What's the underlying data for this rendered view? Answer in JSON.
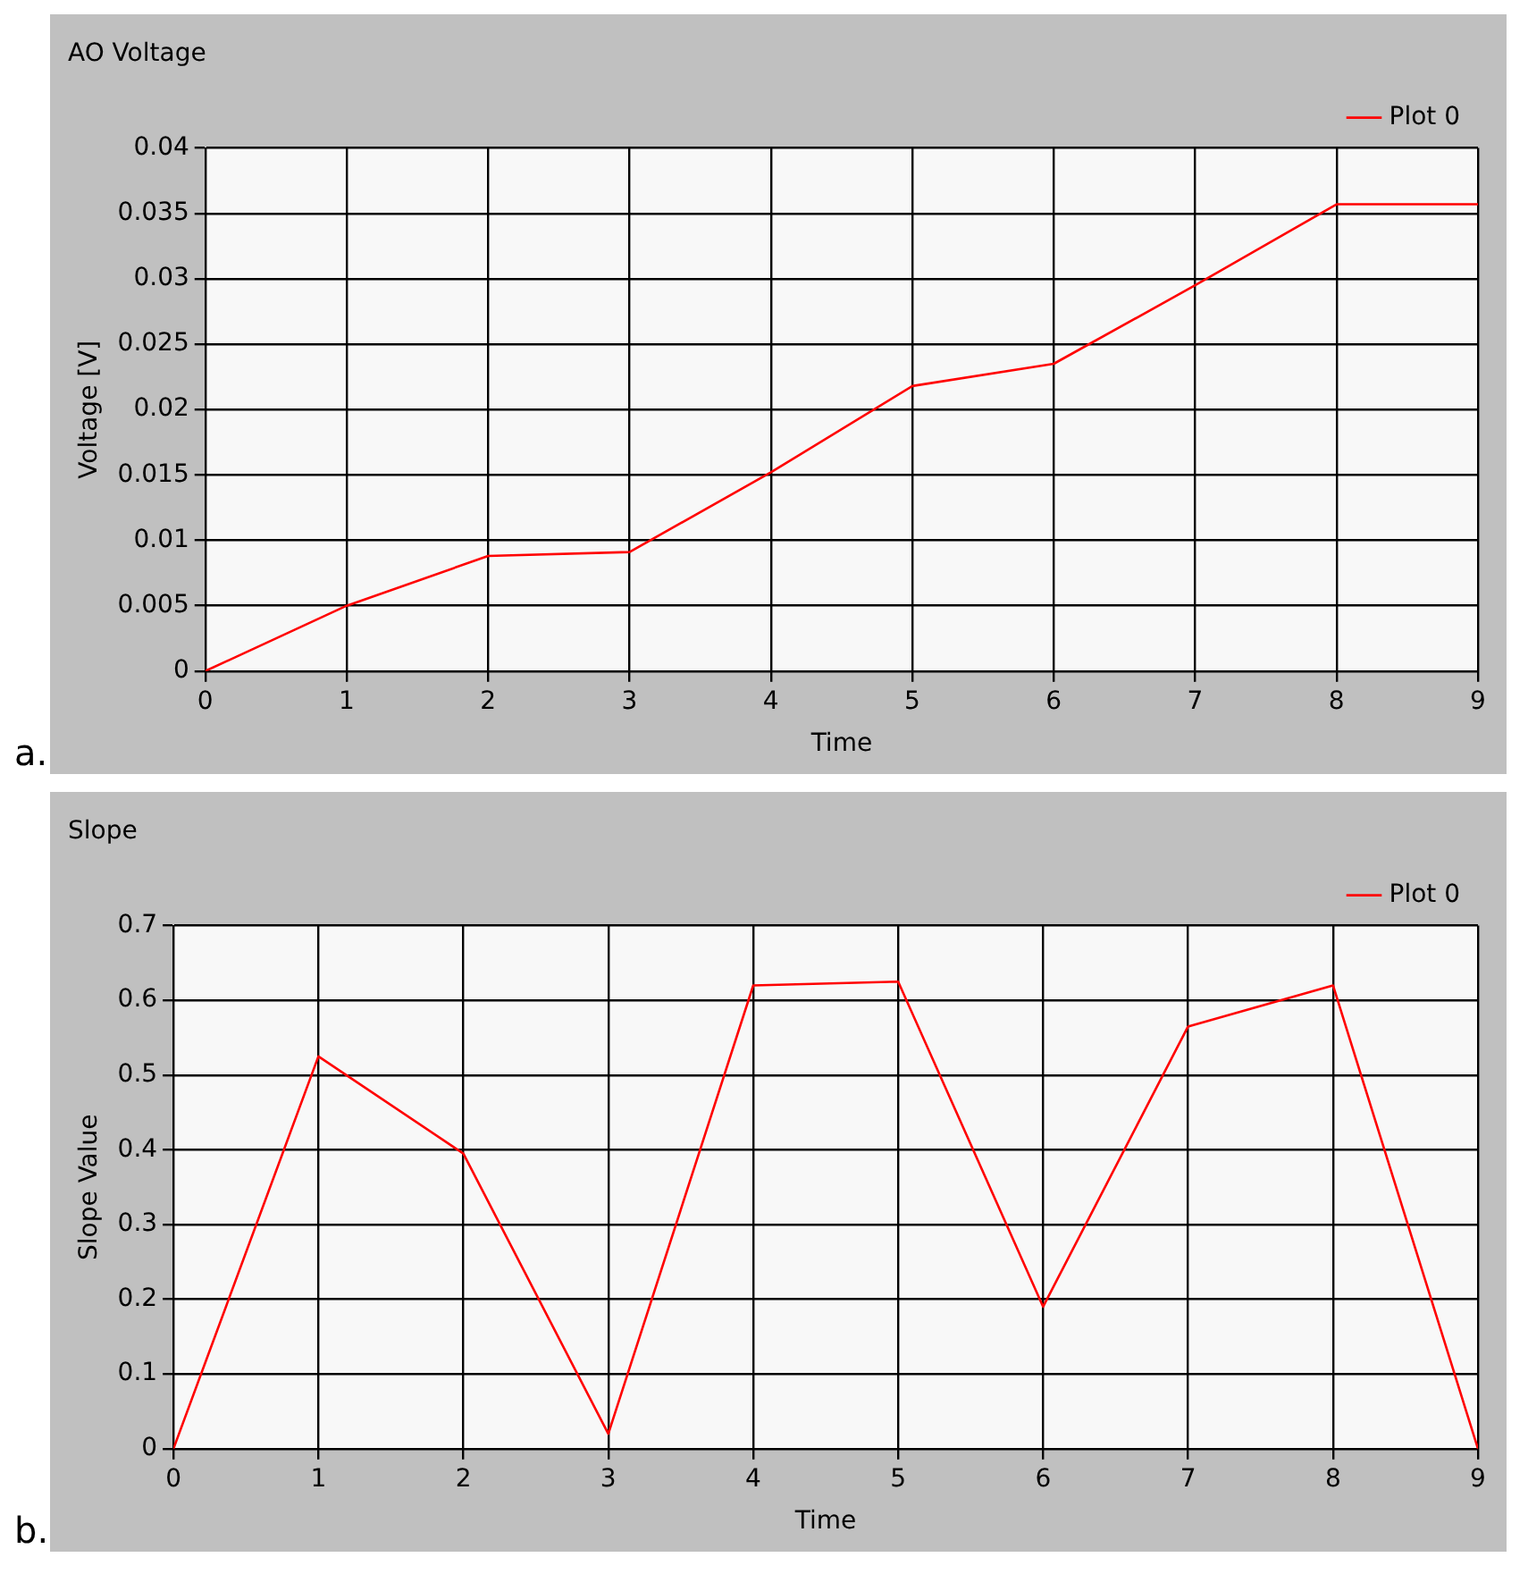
{
  "chart_data": [
    {
      "type": "line",
      "title": "AO Voltage",
      "xlabel": "Time",
      "ylabel": "Voltage [V]",
      "annotations": [
        "a."
      ],
      "x": [
        0,
        1,
        2,
        3,
        4,
        5,
        6,
        7,
        8,
        9
      ],
      "series": [
        {
          "name": "Plot 0",
          "color": "#ff0000",
          "values": [
            0,
            0.005,
            0.0088,
            0.0091,
            0.0152,
            0.0218,
            0.0235,
            0.0295,
            0.0357,
            0.0357
          ]
        }
      ],
      "xlim": [
        0,
        9
      ],
      "xticks": [
        0,
        1,
        2,
        3,
        4,
        5,
        6,
        7,
        8,
        9
      ],
      "ylim": [
        0,
        0.04
      ],
      "yticks": [
        0,
        0.005,
        0.01,
        0.015,
        0.02,
        0.025,
        0.03,
        0.035,
        0.04
      ],
      "grid": true,
      "legend": "top right",
      "marker": "none",
      "line_style": "solid"
    },
    {
      "type": "line",
      "title": "Slope",
      "xlabel": "Time",
      "ylabel": "Slope Value",
      "annotations": [
        "b."
      ],
      "x": [
        0,
        1,
        2,
        3,
        4,
        5,
        6,
        7,
        8,
        9
      ],
      "series": [
        {
          "name": "Plot 0",
          "color": "#ff0000",
          "values": [
            0,
            0.525,
            0.395,
            0.02,
            0.62,
            0.625,
            0.19,
            0.565,
            0.62,
            0
          ]
        }
      ],
      "xlim": [
        0,
        9
      ],
      "xticks": [
        0,
        1,
        2,
        3,
        4,
        5,
        6,
        7,
        8,
        9
      ],
      "ylim": [
        0,
        0.7
      ],
      "yticks": [
        0,
        0.1,
        0.2,
        0.3,
        0.4,
        0.5,
        0.6,
        0.7
      ],
      "grid": true,
      "legend": "top right",
      "marker": "none",
      "line_style": "solid"
    }
  ]
}
